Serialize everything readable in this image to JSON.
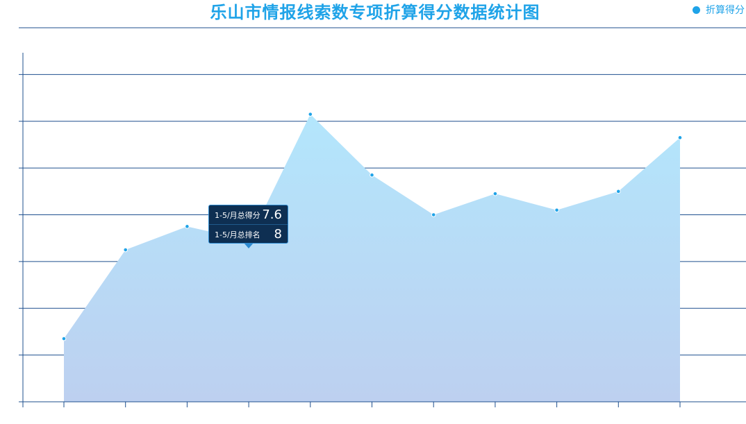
{
  "chart_data": {
    "type": "area",
    "title": "乐山市情报线索数专项折算得分数据统计图",
    "legend": {
      "position": "top-right",
      "entries": [
        "折算得分"
      ]
    },
    "ylim": [
      0,
      16
    ],
    "y_grid_step": 2,
    "grid": true,
    "categories": [
      "",
      "",
      "",
      "",
      "",
      "",
      "",
      "",
      "",
      "",
      ""
    ],
    "series": [
      {
        "name": "折算得分",
        "values": [
          2.7,
          6.5,
          7.5,
          6.9,
          12.3,
          9.7,
          8.0,
          8.9,
          8.2,
          9.0,
          11.3
        ],
        "color": "#1fa3e8"
      }
    ],
    "tooltip": {
      "index": 3,
      "rows": [
        {
          "label": "1-5/月总得分",
          "value": "7.6"
        },
        {
          "label": "1-5/月总排名",
          "value": "8"
        }
      ]
    },
    "colors": {
      "grid": "#1e4f8e",
      "area_top": "#b3e6fc",
      "area_bottom": "#bdd0f0",
      "point": "#1fa3e8"
    }
  }
}
